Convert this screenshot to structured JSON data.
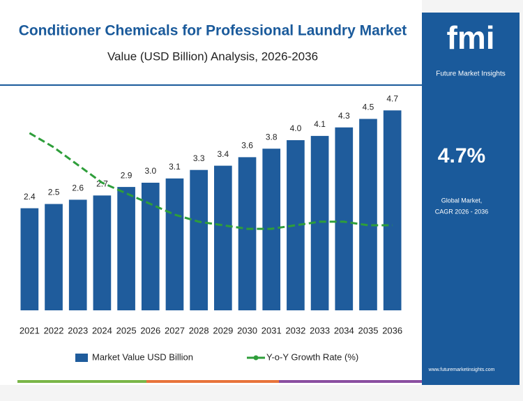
{
  "chart_data": {
    "type": "bar",
    "title": "Conditioner Chemicals for Professional Laundry Market",
    "subtitle": "Value (USD Billion) Analysis, 2026-2036",
    "categories": [
      "2021",
      "2022",
      "2023",
      "2024",
      "2025",
      "2026",
      "2027",
      "2028",
      "2029",
      "2030",
      "2031",
      "2032",
      "2033",
      "2034",
      "2035",
      "2036"
    ],
    "series": [
      {
        "name": "Market Value USD Billion",
        "type": "bar",
        "color": "#1f5c9c",
        "values": [
          2.4,
          2.5,
          2.6,
          2.7,
          2.9,
          3.0,
          3.1,
          3.3,
          3.4,
          3.6,
          3.8,
          4.0,
          4.1,
          4.3,
          4.5,
          4.7
        ],
        "value_labels": [
          "2.4",
          "2.5",
          "2.6",
          "2.7",
          "2.9",
          "3.0",
          "3.1",
          "3.3",
          "3.4",
          "3.6",
          "3.8",
          "4.0",
          "4.1",
          "4.3",
          "4.5",
          "4.7"
        ]
      },
      {
        "name": "Y-o-Y Growth Rate (%)",
        "type": "line",
        "axis": "y2",
        "color": "#2e9e3a",
        "values": [
          7.0,
          6.6,
          6.1,
          5.6,
          5.3,
          5.0,
          4.7,
          4.5,
          4.4,
          4.3,
          4.3,
          4.4,
          4.5,
          4.5,
          4.4,
          4.4
        ]
      }
    ],
    "ylim": [
      0,
      5
    ],
    "y2lim": [
      2,
      8
    ]
  },
  "sidebar": {
    "logo": "fmi",
    "brand": "Future Market Insights",
    "cagr": "4.7%",
    "caption1": "Global Market,",
    "caption2": "CAGR 2026 - 2036",
    "url": "www.futuremarketinsights.com"
  }
}
